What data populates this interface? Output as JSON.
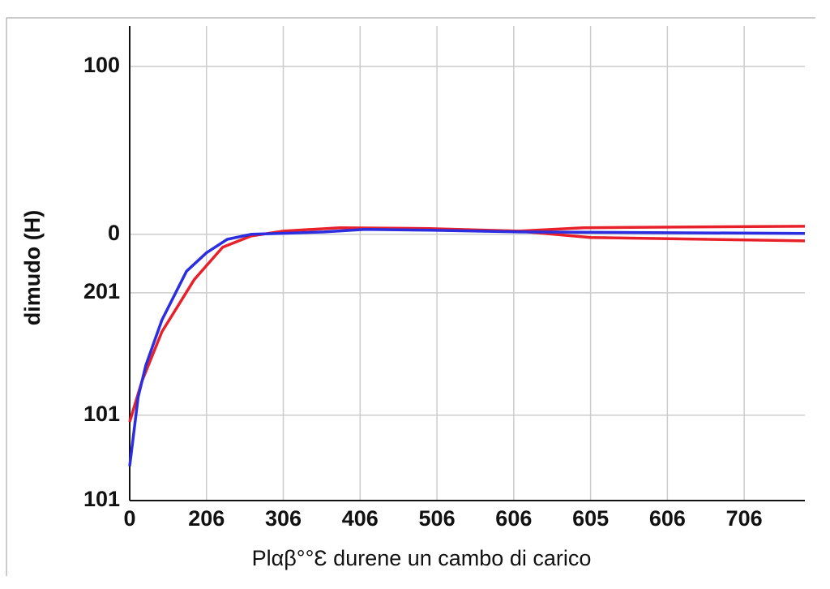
{
  "chart_data": {
    "type": "line",
    "xlabel": "Plαβ°°Ɛ durene un cambo di carico",
    "ylabel": "dimudo (H)",
    "xlim": [
      0,
      879
    ],
    "ylim": [
      -158.5,
      124
    ],
    "xticks": [
      0,
      {
        "value": 100,
        "label": "206"
      },
      {
        "value": 200,
        "label": "306"
      },
      {
        "value": 300,
        "label": "406"
      },
      {
        "value": 400,
        "label": "506"
      },
      {
        "value": 500,
        "label": "606"
      },
      {
        "value": 600,
        "label": "605"
      },
      {
        "value": 700,
        "label": "606"
      },
      {
        "value": 800,
        "label": "706"
      }
    ],
    "yticks": [
      {
        "value": 100,
        "label": "100"
      },
      0,
      {
        "value": -34.8,
        "label": "201"
      },
      {
        "value": -107.7,
        "label": "101"
      },
      {
        "value": -158.5,
        "label": "101"
      }
    ],
    "grid": true,
    "series": [
      {
        "color": "#e8202a",
        "x": [
          0,
          16,
          42,
          84,
          121,
          158,
          200,
          274,
          390,
          506,
          591,
          879
        ],
        "values": [
          -111.6,
          -87.4,
          -58,
          -27,
          -7.7,
          -1,
          1.9,
          3.9,
          3.4,
          1.9,
          3.9,
          4.8
        ]
      },
      {
        "color": "#e8202a",
        "x": [
          506,
          600,
          879
        ],
        "values": [
          1.9,
          -1.9,
          -3.9
        ]
      },
      {
        "color": "#2a2ee0",
        "x": [
          0,
          11,
          21,
          42,
          74,
          100,
          127,
          158,
          195,
          253,
          306,
          391,
          507,
          676,
          879
        ],
        "values": [
          -138,
          -97,
          -78,
          -51,
          -22,
          -11,
          -3,
          0,
          0.5,
          1.4,
          2.9,
          2.4,
          1.4,
          1,
          0.5
        ]
      }
    ]
  }
}
